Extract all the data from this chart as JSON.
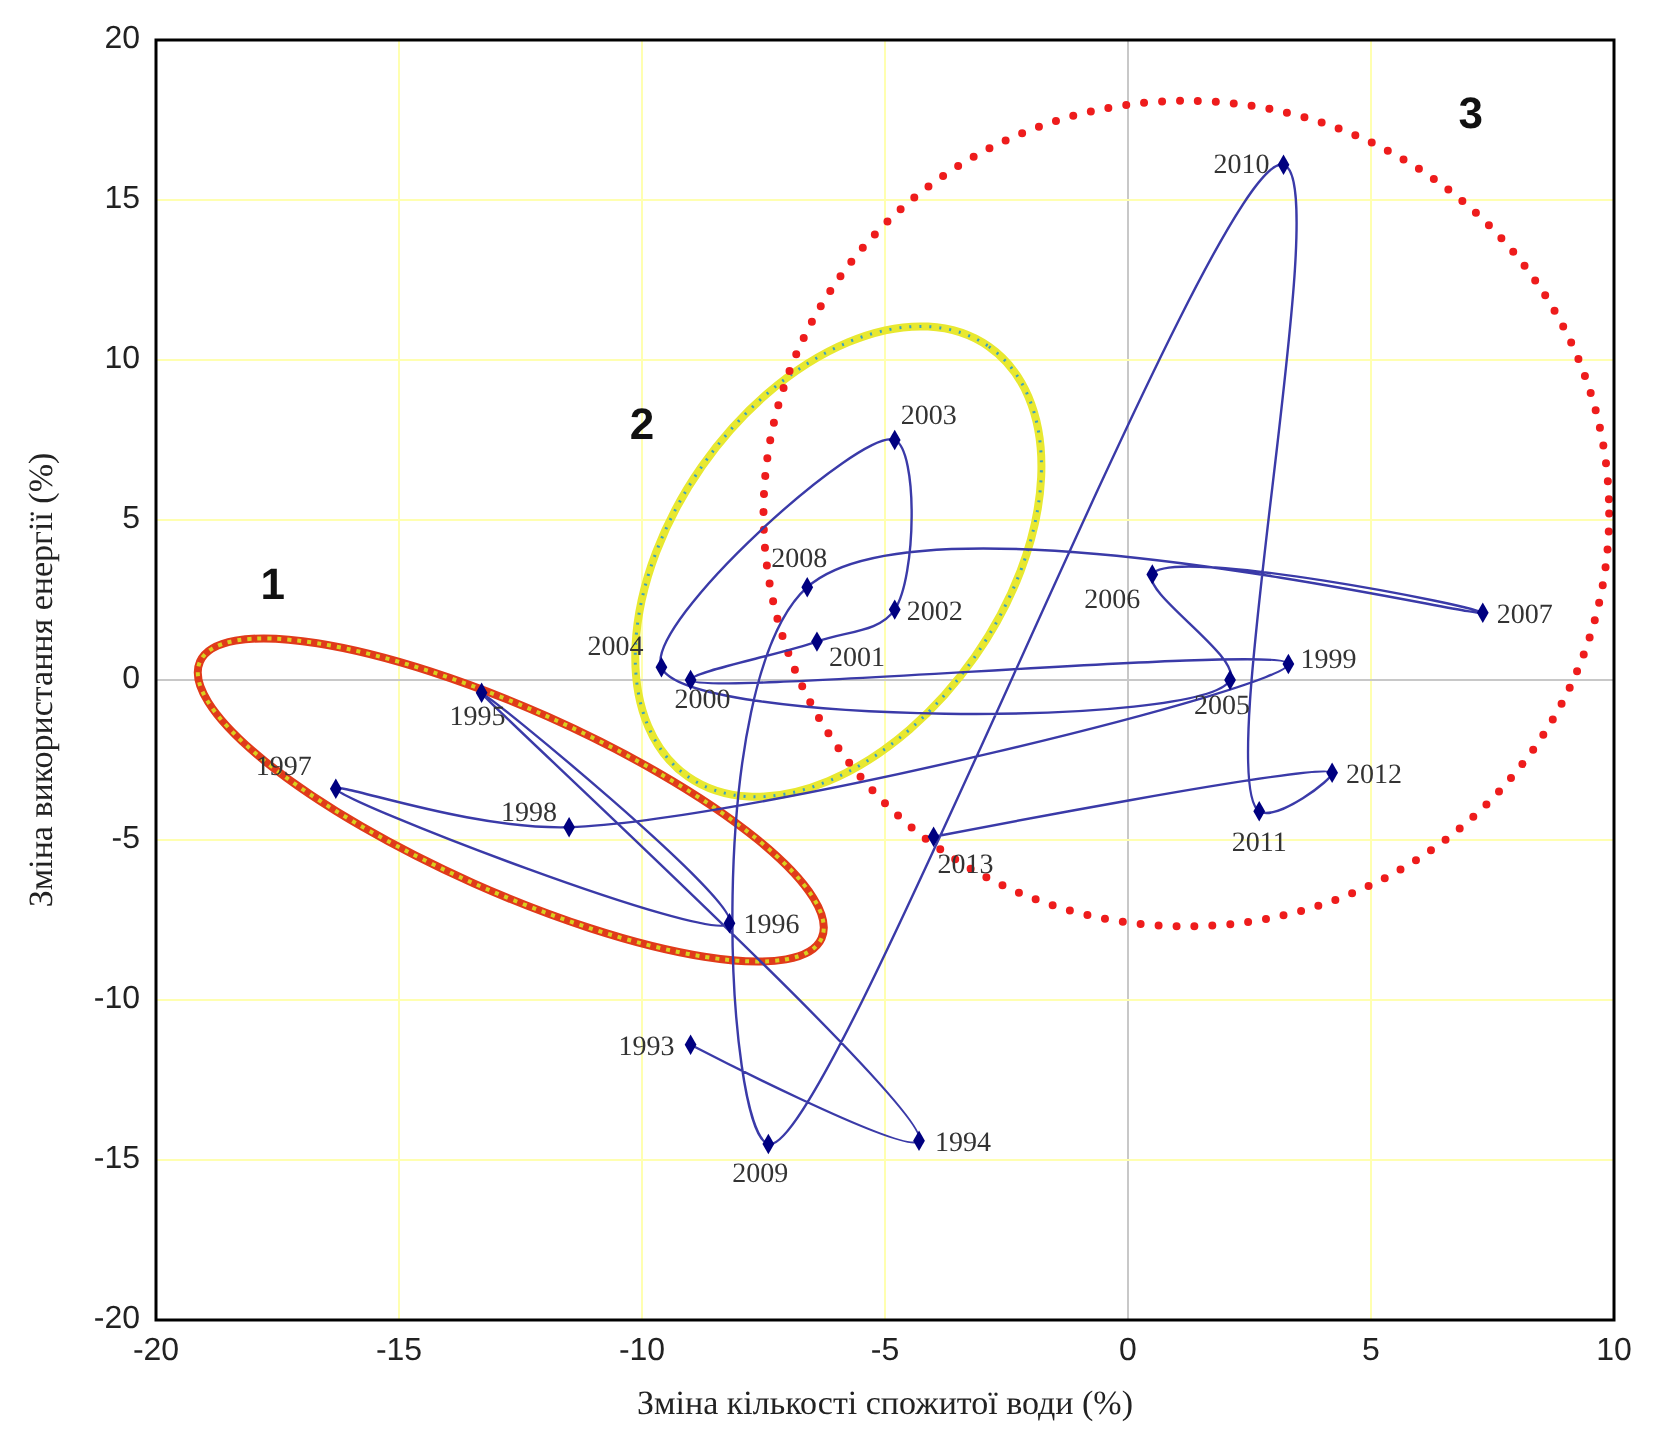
{
  "chart_data": {
    "type": "line",
    "xlabel": "Зміна кількості спожитої води (%)",
    "ylabel": "Зміна використання енергії (%)",
    "xlim": [
      -20,
      10
    ],
    "xticks": [
      -20,
      -15,
      -10,
      -5,
      0,
      5,
      10
    ],
    "ylim": [
      -20,
      20
    ],
    "yticks": [
      -20,
      -15,
      -10,
      -5,
      0,
      5,
      10,
      15,
      20
    ],
    "grid": true,
    "marker": "diamond",
    "series": [
      {
        "color": "#3a3aa8",
        "x": [
          -9.0,
          -4.3,
          -13.3,
          -8.2,
          -16.3,
          -11.5,
          3.3,
          -9.0,
          -6.4,
          -4.8,
          -4.8,
          -9.6,
          2.1,
          0.5,
          7.3,
          -6.6,
          -7.4,
          3.2,
          2.7,
          4.2,
          -4.0
        ],
        "values": [
          -11.4,
          -14.4,
          -0.4,
          -7.6,
          -3.4,
          -4.6,
          0.5,
          0.0,
          1.2,
          2.2,
          7.5,
          0.4,
          0.0,
          3.3,
          2.1,
          2.9,
          -14.5,
          16.1,
          -4.1,
          -2.9,
          -4.9
        ]
      }
    ],
    "annotations": [
      {
        "text": "1993",
        "x": -9.0,
        "y": -11.4
      },
      {
        "text": "1994",
        "x": -4.3,
        "y": -14.4
      },
      {
        "text": "1995",
        "x": -13.3,
        "y": -0.4
      },
      {
        "text": "1996",
        "x": -8.2,
        "y": -7.6
      },
      {
        "text": "1997",
        "x": -16.3,
        "y": -3.4
      },
      {
        "text": "1998",
        "x": -11.5,
        "y": -4.6
      },
      {
        "text": "1999",
        "x": 3.3,
        "y": 0.5
      },
      {
        "text": "2000",
        "x": -9.0,
        "y": 0.0
      },
      {
        "text": "2001",
        "x": -6.4,
        "y": 1.2
      },
      {
        "text": "2002",
        "x": -4.8,
        "y": 2.2
      },
      {
        "text": "2003",
        "x": -4.8,
        "y": 7.5
      },
      {
        "text": "2004",
        "x": -9.6,
        "y": 0.4
      },
      {
        "text": "2005",
        "x": 2.1,
        "y": 0.0
      },
      {
        "text": "2006",
        "x": 0.5,
        "y": 3.3
      },
      {
        "text": "2007",
        "x": 7.3,
        "y": 2.1
      },
      {
        "text": "2008",
        "x": -6.6,
        "y": 2.9
      },
      {
        "text": "2009",
        "x": -7.4,
        "y": -14.5
      },
      {
        "text": "2010",
        "x": 3.2,
        "y": 16.1
      },
      {
        "text": "2011",
        "x": 2.7,
        "y": -4.1
      },
      {
        "text": "2012",
        "x": 4.2,
        "y": -2.9
      },
      {
        "text": "2013",
        "x": -4.0,
        "y": -4.9
      },
      "1",
      "2",
      "3"
    ]
  }
}
